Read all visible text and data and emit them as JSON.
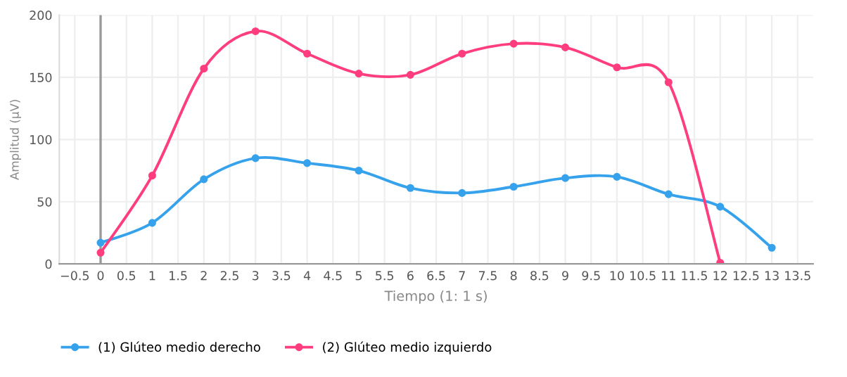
{
  "chart_data": {
    "type": "line",
    "xlabel": "Tiempo (1: 1 s)",
    "ylabel": "Amplitud (µV)",
    "series": [
      {
        "name": "(1) Glúteo medio derecho",
        "color": "#36a2eb",
        "x": [
          0,
          1,
          2,
          3,
          4,
          5,
          6,
          7,
          8,
          9,
          10,
          11,
          12,
          13
        ],
        "values": [
          17,
          33,
          68,
          85,
          81,
          75,
          61,
          57,
          62,
          69,
          70,
          56,
          46,
          13
        ]
      },
      {
        "name": "(2) Glúteo medio izquierdo",
        "color": "#ff3d7f",
        "x": [
          0,
          1,
          2,
          3,
          4,
          5,
          6,
          7,
          8,
          9,
          10,
          11,
          12
        ],
        "values": [
          9,
          71,
          157,
          187,
          169,
          153,
          152,
          169,
          177,
          174,
          158,
          146,
          1
        ]
      }
    ],
    "xlim": [
      -0.8,
      13.8
    ],
    "ylim": [
      0,
      200
    ],
    "xticks": [
      {
        "value": -0.5,
        "label": "−0.5"
      },
      0,
      0.5,
      1,
      1.5,
      2,
      2.5,
      3,
      3.5,
      4,
      4.5,
      5,
      5.5,
      6,
      6.5,
      7,
      7.5,
      8,
      8.5,
      9,
      9.5,
      10,
      10.5,
      11,
      11.5,
      12,
      12.5,
      13,
      13.5
    ],
    "yticks": [
      0,
      50,
      100,
      150,
      200
    ],
    "ref_lines": [
      {
        "axis": "x",
        "value": 0,
        "color": "#999999"
      }
    ],
    "grid": true,
    "legend": "bottom",
    "marker": "circle",
    "line_style": "solid"
  }
}
